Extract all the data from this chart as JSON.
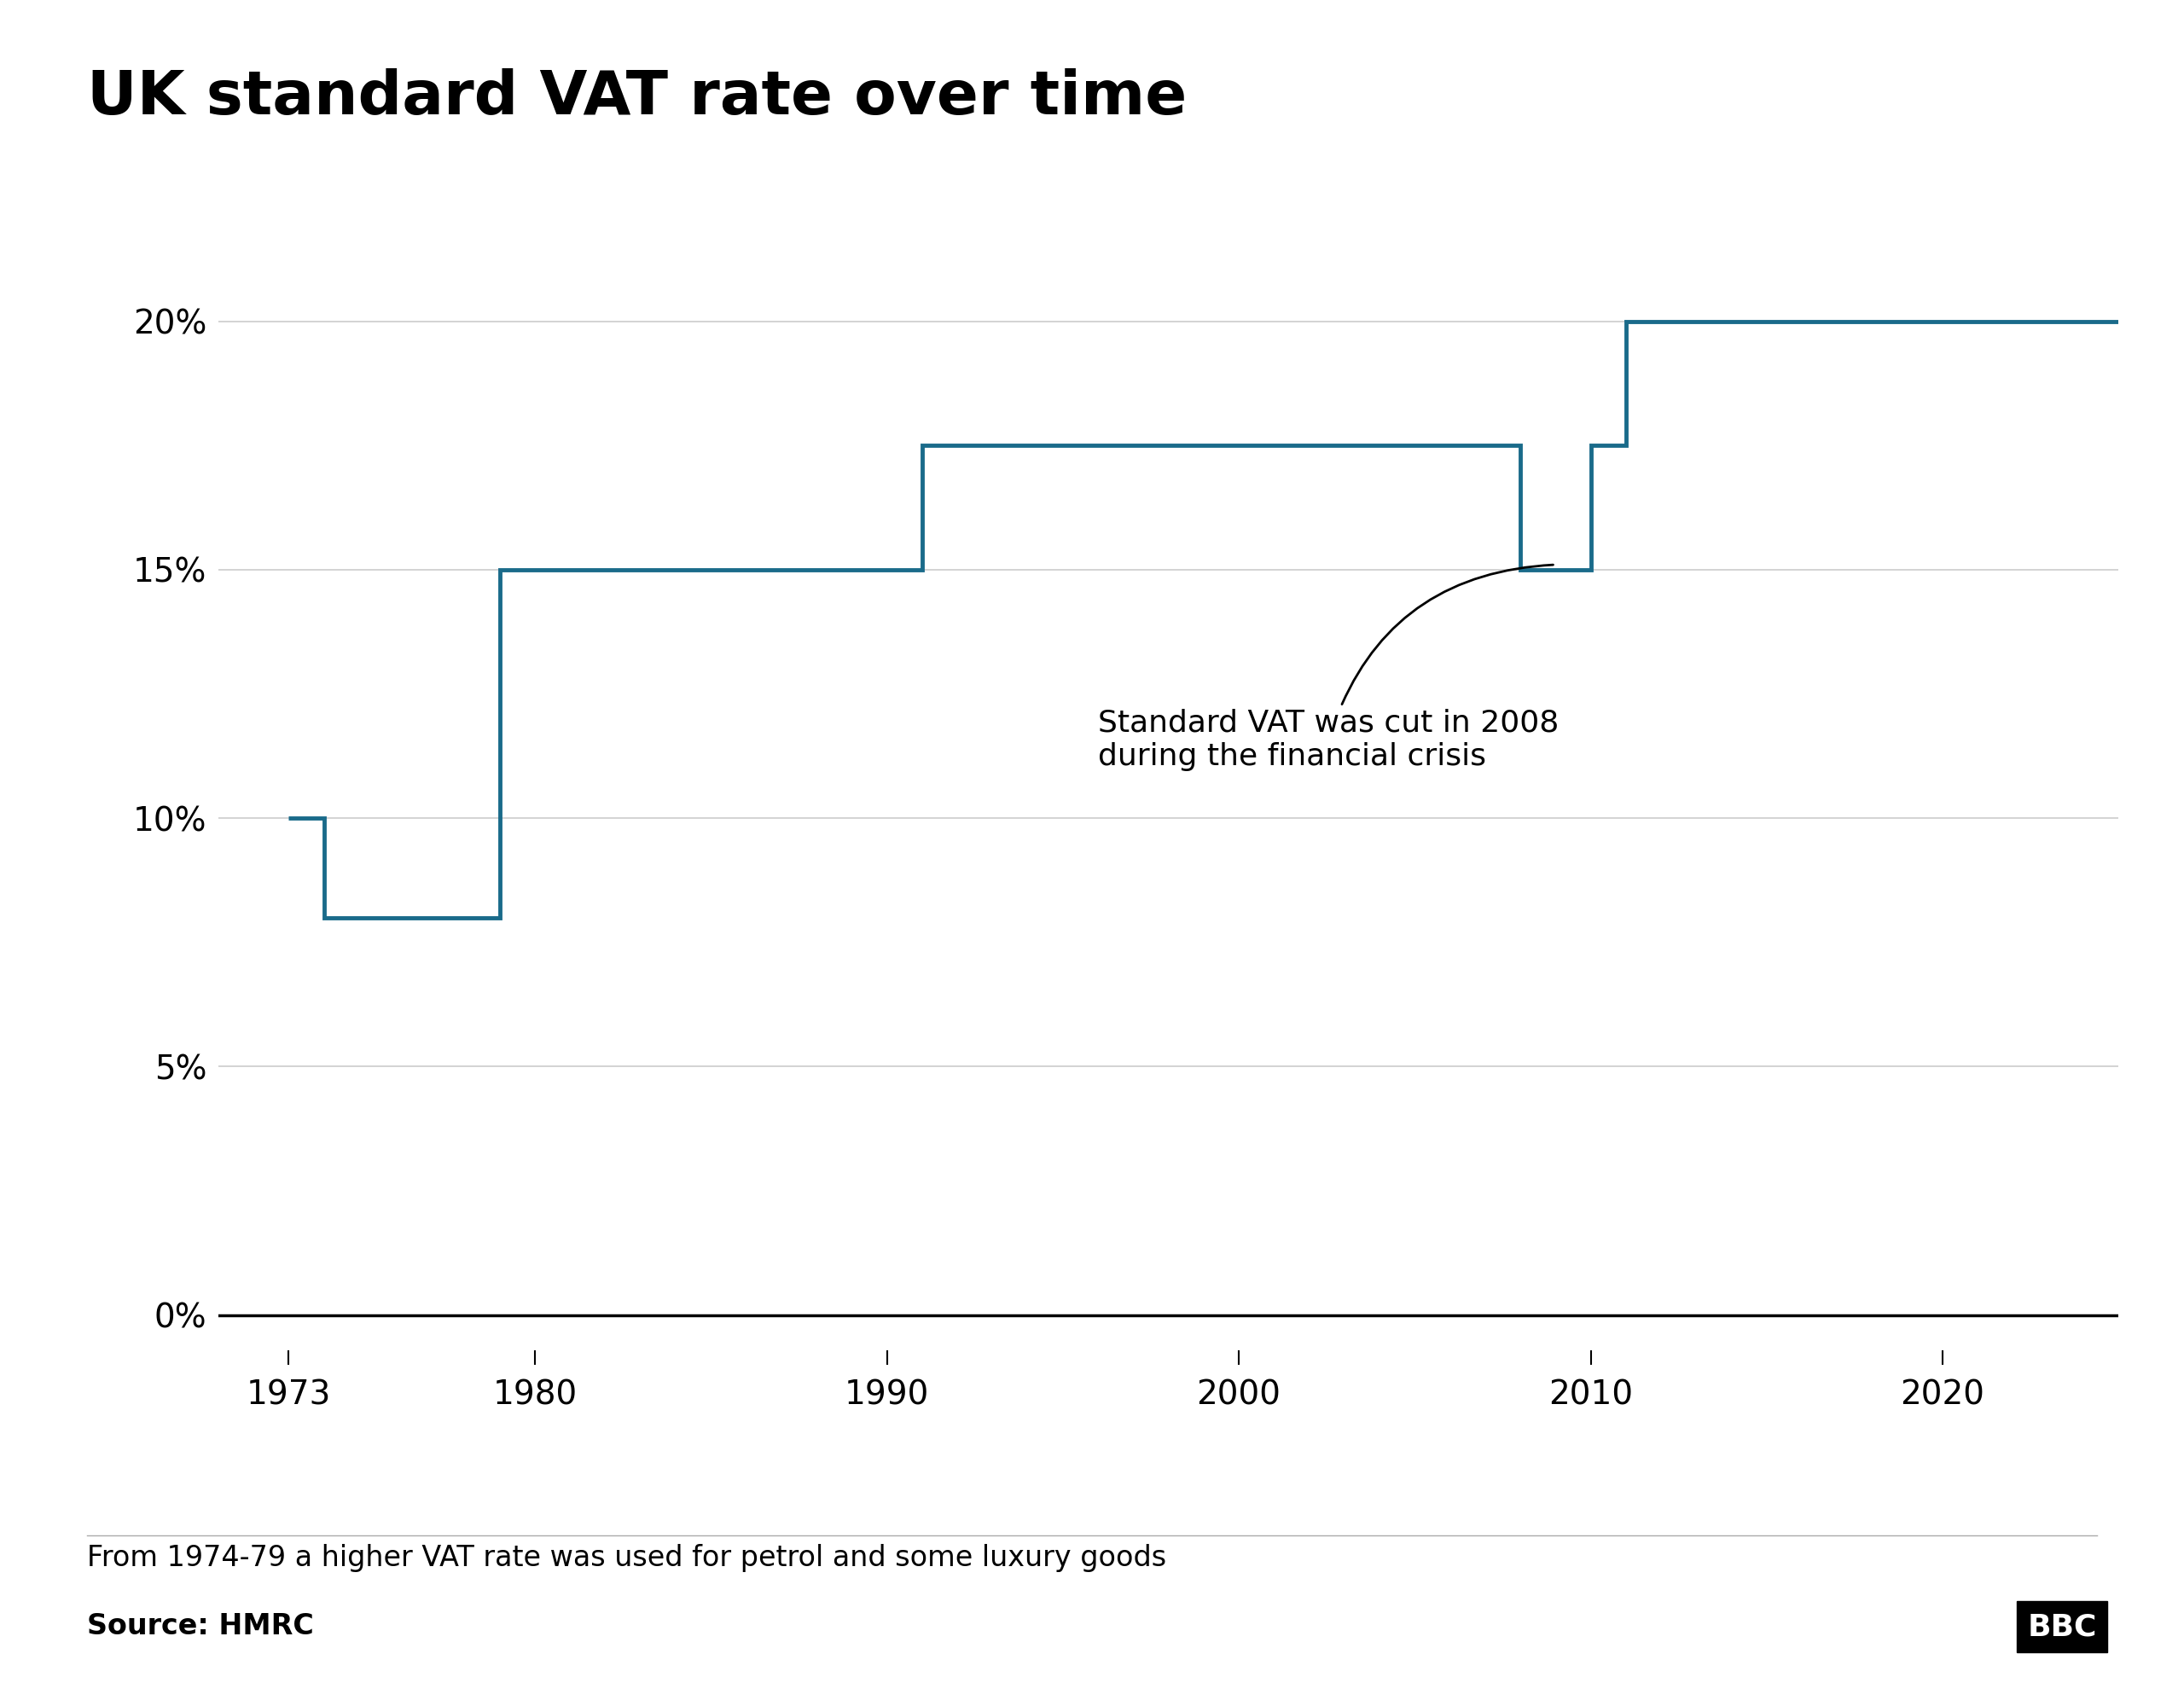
{
  "title": "UK standard VAT rate over time",
  "line_color": "#1a6b8a",
  "line_width": 3.5,
  "background_color": "#ffffff",
  "annotation_text": "Standard VAT was cut in 2008\nduring the financial crisis",
  "footnote": "From 1974-79 a higher VAT rate was used for petrol and some luxury goods",
  "source": "Source: HMRC",
  "bbc_text": "BBC",
  "yticks": [
    0,
    5,
    10,
    15,
    20
  ],
  "ytick_labels": [
    "0%",
    "5%",
    "10%",
    "15%",
    "20%"
  ],
  "xticks": [
    1973,
    1980,
    1990,
    2000,
    2010,
    2020
  ],
  "xlim": [
    1971,
    2025
  ],
  "ylim": [
    -1,
    22
  ],
  "step_x": [
    1973,
    1974,
    1974,
    1979,
    1979,
    1991,
    1991,
    2008,
    2008,
    2010,
    2010,
    2011,
    2011,
    2025
  ],
  "step_y": [
    10,
    10,
    8,
    8,
    15,
    15,
    17.5,
    17.5,
    15,
    15,
    17.5,
    17.5,
    20,
    20
  ]
}
